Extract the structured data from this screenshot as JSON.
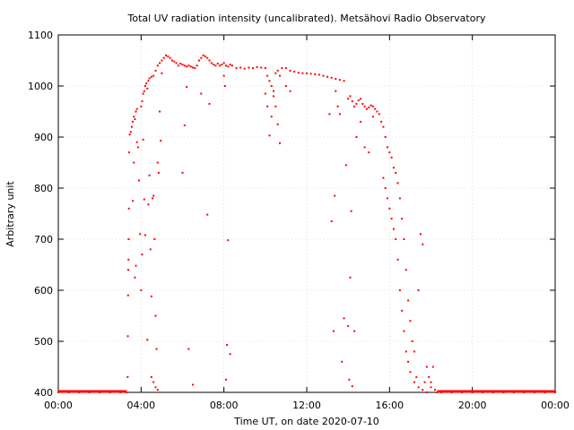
{
  "chart_data": {
    "type": "scatter",
    "title": "Total UV radiation intensity (uncalibrated). Metsähovi Radio Observatory",
    "xlabel": "Time UT, on date 2020-07-10",
    "ylabel": "Arbitrary unit",
    "xlim": [
      0,
      24
    ],
    "ylim": [
      400,
      1100
    ],
    "x_unit": "hours UT",
    "x_ticks": [
      0,
      4,
      8,
      12,
      16,
      20,
      24
    ],
    "x_tick_labels": [
      "00:00",
      "04:00",
      "08:00",
      "12:00",
      "16:00",
      "20:00",
      "00:00"
    ],
    "y_ticks": [
      400,
      500,
      600,
      700,
      800,
      900,
      1000,
      1100
    ],
    "y_tick_labels": [
      "400",
      "500",
      "600",
      "700",
      "800",
      "900",
      "1000",
      "1100"
    ],
    "grid": true,
    "series": [
      {
        "color": "#ff0000",
        "marker": "dot",
        "points": [
          [
            0.0,
            400
          ],
          [
            0.5,
            400
          ],
          [
            1.0,
            400
          ],
          [
            1.5,
            400
          ],
          [
            2.0,
            400
          ],
          [
            2.5,
            400
          ],
          [
            3.0,
            400
          ],
          [
            3.3,
            400
          ],
          [
            3.35,
            430
          ],
          [
            3.36,
            510
          ],
          [
            3.37,
            590
          ],
          [
            3.38,
            640
          ],
          [
            3.39,
            660
          ],
          [
            3.4,
            700
          ],
          [
            3.41,
            760
          ],
          [
            3.42,
            870
          ],
          [
            3.45,
            905
          ],
          [
            3.5,
            910
          ],
          [
            3.55,
            920
          ],
          [
            3.6,
            930
          ],
          [
            3.65,
            940
          ],
          [
            3.7,
            935
          ],
          [
            3.75,
            950
          ],
          [
            3.8,
            955
          ],
          [
            3.6,
            775
          ],
          [
            3.65,
            850
          ],
          [
            3.7,
            625
          ],
          [
            3.75,
            648
          ],
          [
            3.8,
            890
          ],
          [
            3.85,
            880
          ],
          [
            3.9,
            815
          ],
          [
            3.95,
            710
          ],
          [
            4.0,
            960
          ],
          [
            4.05,
            970
          ],
          [
            4.1,
            985
          ],
          [
            4.15,
            990
          ],
          [
            4.2,
            1000
          ],
          [
            4.25,
            1005
          ],
          [
            4.3,
            995
          ],
          [
            4.35,
            1010
          ],
          [
            4.0,
            600
          ],
          [
            4.05,
            670
          ],
          [
            4.1,
            895
          ],
          [
            4.15,
            778
          ],
          [
            4.2,
            708
          ],
          [
            4.3,
            503
          ],
          [
            4.35,
            768
          ],
          [
            4.4,
            825
          ],
          [
            4.45,
            680
          ],
          [
            4.5,
            588
          ],
          [
            4.55,
            780
          ],
          [
            4.6,
            785
          ],
          [
            4.65,
            700
          ],
          [
            4.7,
            550
          ],
          [
            4.75,
            485
          ],
          [
            4.8,
            850
          ],
          [
            4.4,
            1015
          ],
          [
            4.5,
            1018
          ],
          [
            4.6,
            1020
          ],
          [
            4.7,
            1030
          ],
          [
            4.8,
            1040
          ],
          [
            4.9,
            1045
          ],
          [
            5.0,
            1050
          ],
          [
            5.1,
            1055
          ],
          [
            4.5,
            430
          ],
          [
            4.6,
            420
          ],
          [
            4.7,
            410
          ],
          [
            4.8,
            405
          ],
          [
            4.85,
            830
          ],
          [
            4.9,
            950
          ],
          [
            4.95,
            893
          ],
          [
            5.0,
            1025
          ],
          [
            5.2,
            1060
          ],
          [
            5.3,
            1058
          ],
          [
            5.4,
            1055
          ],
          [
            5.5,
            1050
          ],
          [
            5.6,
            1048
          ],
          [
            5.7,
            1045
          ],
          [
            5.8,
            1040
          ],
          [
            5.9,
            1044
          ],
          [
            6.0,
            1042
          ],
          [
            6.1,
            1040
          ],
          [
            6.2,
            1038
          ],
          [
            6.3,
            1040
          ],
          [
            6.4,
            1038
          ],
          [
            6.5,
            1036
          ],
          [
            6.6,
            1035
          ],
          [
            6.7,
            1040
          ],
          [
            6.8,
            1050
          ],
          [
            6.9,
            1055
          ],
          [
            7.0,
            1060
          ],
          [
            7.1,
            1058
          ],
          [
            7.2,
            1055
          ],
          [
            7.3,
            1050
          ],
          [
            7.4,
            1045
          ],
          [
            7.5,
            1042
          ],
          [
            6.0,
            830
          ],
          [
            6.1,
            923
          ],
          [
            6.2,
            998
          ],
          [
            6.3,
            485
          ],
          [
            6.5,
            415
          ],
          [
            6.9,
            985
          ],
          [
            7.2,
            748
          ],
          [
            7.3,
            965
          ],
          [
            7.6,
            1040
          ],
          [
            7.7,
            1044
          ],
          [
            7.8,
            1040
          ],
          [
            7.9,
            1042
          ],
          [
            8.0,
            1045
          ],
          [
            8.1,
            1040
          ],
          [
            8.2,
            1038
          ],
          [
            8.3,
            1042
          ],
          [
            8.0,
            1020
          ],
          [
            8.05,
            1000
          ],
          [
            8.1,
            425
          ],
          [
            8.15,
            493
          ],
          [
            8.2,
            698
          ],
          [
            8.3,
            475
          ],
          [
            8.4,
            1040
          ],
          [
            8.6,
            1035
          ],
          [
            8.8,
            1036
          ],
          [
            9.0,
            1034
          ],
          [
            9.2,
            1036
          ],
          [
            9.4,
            1035
          ],
          [
            9.6,
            1037
          ],
          [
            9.8,
            1036
          ],
          [
            10.0,
            1035
          ],
          [
            10.1,
            1020
          ],
          [
            10.2,
            1010
          ],
          [
            10.3,
            1000
          ],
          [
            10.4,
            990
          ],
          [
            10.5,
            1025
          ],
          [
            10.6,
            1030
          ],
          [
            10.7,
            1020
          ],
          [
            10.0,
            985
          ],
          [
            10.1,
            960
          ],
          [
            10.2,
            903
          ],
          [
            10.3,
            940
          ],
          [
            10.4,
            980
          ],
          [
            10.5,
            960
          ],
          [
            10.6,
            925
          ],
          [
            10.7,
            888
          ],
          [
            10.8,
            1035
          ],
          [
            11.0,
            1035
          ],
          [
            11.2,
            1030
          ],
          [
            11.4,
            1028
          ],
          [
            11.6,
            1026
          ],
          [
            11.8,
            1025
          ],
          [
            12.0,
            1025
          ],
          [
            12.2,
            1024
          ],
          [
            11.0,
            1000
          ],
          [
            11.2,
            990
          ],
          [
            12.4,
            1023
          ],
          [
            12.6,
            1022
          ],
          [
            12.8,
            1020
          ],
          [
            13.0,
            1018
          ],
          [
            13.2,
            1016
          ],
          [
            13.4,
            1014
          ],
          [
            13.6,
            1012
          ],
          [
            13.8,
            1010
          ],
          [
            13.1,
            945
          ],
          [
            13.2,
            735
          ],
          [
            13.3,
            520
          ],
          [
            13.35,
            785
          ],
          [
            13.4,
            990
          ],
          [
            13.5,
            960
          ],
          [
            13.6,
            945
          ],
          [
            13.7,
            460
          ],
          [
            13.8,
            545
          ],
          [
            13.9,
            845
          ],
          [
            14.0,
            530
          ],
          [
            14.05,
            425
          ],
          [
            14.1,
            625
          ],
          [
            14.15,
            755
          ],
          [
            14.2,
            412
          ],
          [
            14.3,
            520
          ],
          [
            14.0,
            975
          ],
          [
            14.1,
            980
          ],
          [
            14.2,
            970
          ],
          [
            14.3,
            960
          ],
          [
            14.4,
            965
          ],
          [
            14.5,
            972
          ],
          [
            14.6,
            975
          ],
          [
            14.7,
            965
          ],
          [
            14.8,
            960
          ],
          [
            14.9,
            955
          ],
          [
            15.0,
            958
          ],
          [
            15.1,
            962
          ],
          [
            15.2,
            960
          ],
          [
            15.3,
            955
          ],
          [
            15.4,
            950
          ],
          [
            15.5,
            945
          ],
          [
            14.4,
            900
          ],
          [
            14.6,
            930
          ],
          [
            14.8,
            880
          ],
          [
            15.0,
            870
          ],
          [
            15.2,
            940
          ],
          [
            15.6,
            930
          ],
          [
            15.7,
            920
          ],
          [
            15.8,
            900
          ],
          [
            15.9,
            880
          ],
          [
            16.0,
            870
          ],
          [
            16.1,
            860
          ],
          [
            16.2,
            840
          ],
          [
            16.3,
            830
          ],
          [
            15.7,
            820
          ],
          [
            15.8,
            800
          ],
          [
            15.9,
            780
          ],
          [
            16.0,
            760
          ],
          [
            16.1,
            740
          ],
          [
            16.2,
            720
          ],
          [
            16.3,
            700
          ],
          [
            16.4,
            660
          ],
          [
            16.4,
            810
          ],
          [
            16.5,
            780
          ],
          [
            16.6,
            740
          ],
          [
            16.7,
            700
          ],
          [
            16.8,
            640
          ],
          [
            16.9,
            580
          ],
          [
            17.0,
            540
          ],
          [
            17.1,
            500
          ],
          [
            16.5,
            600
          ],
          [
            16.6,
            560
          ],
          [
            16.7,
            520
          ],
          [
            16.8,
            480
          ],
          [
            16.9,
            460
          ],
          [
            17.0,
            440
          ],
          [
            17.2,
            420
          ],
          [
            17.3,
            430
          ],
          [
            17.2,
            480
          ],
          [
            17.4,
            600
          ],
          [
            17.5,
            710
          ],
          [
            17.6,
            690
          ],
          [
            17.8,
            450
          ],
          [
            17.9,
            430
          ],
          [
            18.0,
            420
          ],
          [
            18.1,
            450
          ],
          [
            17.4,
            410
          ],
          [
            17.6,
            405
          ],
          [
            17.7,
            420
          ],
          [
            17.8,
            400
          ],
          [
            18.0,
            410
          ],
          [
            18.2,
            405
          ],
          [
            18.3,
            400
          ],
          [
            18.5,
            400
          ],
          [
            19.0,
            400
          ],
          [
            19.5,
            400
          ],
          [
            20.0,
            400
          ],
          [
            20.5,
            400
          ],
          [
            21.0,
            400
          ],
          [
            21.5,
            400
          ],
          [
            22.0,
            400
          ],
          [
            22.5,
            400
          ],
          [
            23.0,
            400
          ],
          [
            23.5,
            400
          ],
          [
            24.0,
            400
          ]
        ]
      }
    ]
  }
}
